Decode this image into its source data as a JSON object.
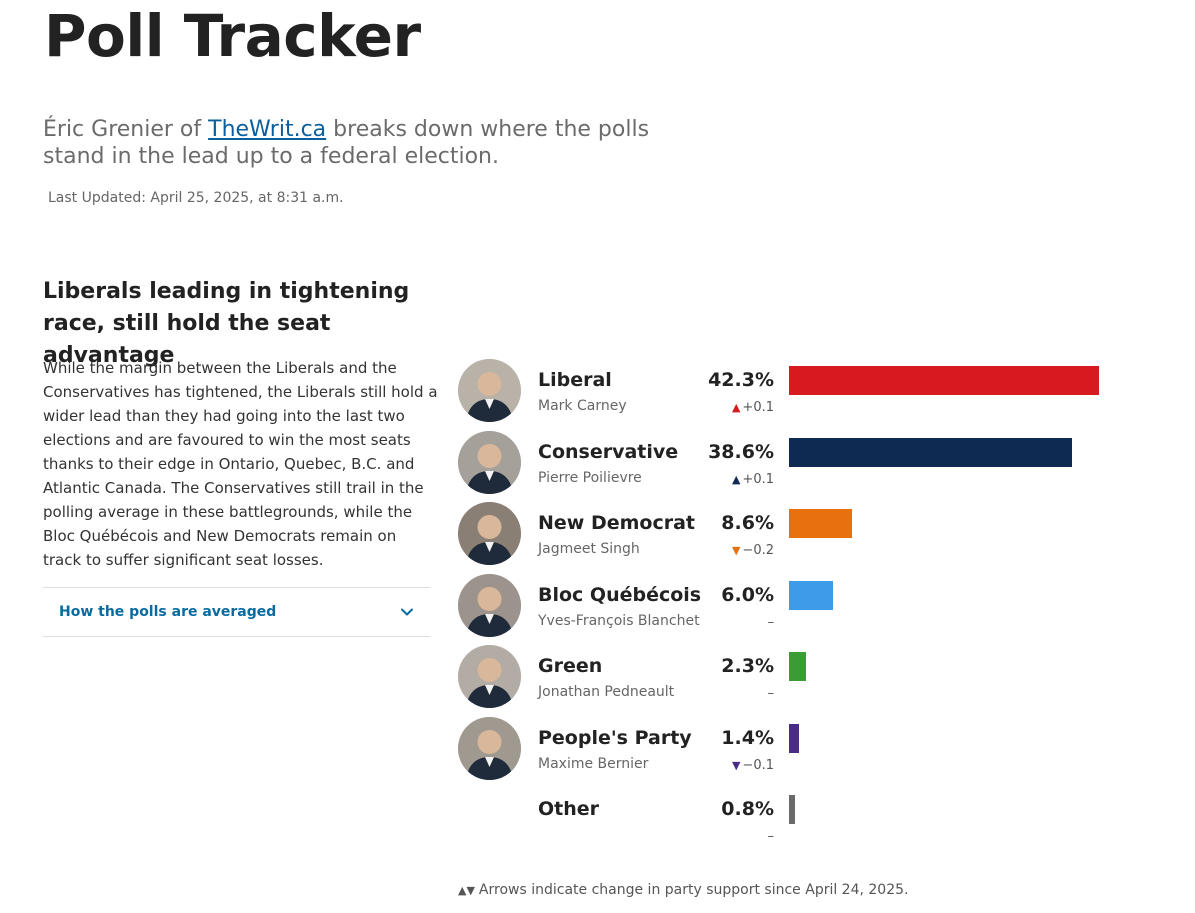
{
  "page": {
    "title": "Poll Tracker",
    "dek_before": "Éric Grenier of ",
    "dek_link": "TheWrit.ca",
    "dek_after": " breaks down where the polls stand in the lead up to a federal election.",
    "last_updated": "Last Updated: April 25, 2025, at 8:31 a.m."
  },
  "article": {
    "headline": "Liberals leading in tightening race, still hold the seat advantage",
    "body": "While the margin between the Liberals and the Conservatives has tightened, the Liberals still hold a wider lead than they had going into the last two elections and are favoured to win the most seats thanks to their edge in Ontario, Quebec, B.C. and Atlantic Canada. The Conservatives still trail in the polling average in these battlegrounds, while the Bloc Québécois and New Democrats remain on track to suffer significant seat losses.",
    "accordion_label": "How the polls are averaged"
  },
  "chart_data": {
    "type": "bar",
    "categories": [
      "Liberal",
      "Conservative",
      "New Democrat",
      "Bloc Québécois",
      "Green",
      "People's Party",
      "Other"
    ],
    "values": [
      42.3,
      38.6,
      8.6,
      6.0,
      2.3,
      1.4,
      0.8
    ],
    "max_value": 42.3,
    "rows": [
      {
        "party": "Liberal",
        "leader": "Mark Carney",
        "pct": "42.3%",
        "value": 42.3,
        "change": "+0.1",
        "direction": "up",
        "color": "#d71920",
        "arrow_color": "#d71920",
        "avatar": true
      },
      {
        "party": "Conservative",
        "leader": "Pierre Poilievre",
        "pct": "38.6%",
        "value": 38.6,
        "change": "+0.1",
        "direction": "up",
        "color": "#0e2a52",
        "arrow_color": "#0e2a52",
        "avatar": true
      },
      {
        "party": "New Democrat",
        "leader": "Jagmeet Singh",
        "pct": "8.6%",
        "value": 8.6,
        "change": "−0.2",
        "direction": "down",
        "color": "#e8700f",
        "arrow_color": "#e8700f",
        "avatar": true
      },
      {
        "party": "Bloc Québécois",
        "leader": "Yves-François Blanchet",
        "pct": "6.0%",
        "value": 6.0,
        "change": "–",
        "direction": "none",
        "color": "#3d9be9",
        "arrow_color": "#3d9be9",
        "avatar": true
      },
      {
        "party": "Green",
        "leader": "Jonathan Pedneault",
        "pct": "2.3%",
        "value": 2.3,
        "change": "–",
        "direction": "none",
        "color": "#3a9c35",
        "arrow_color": "#3a9c35",
        "avatar": true
      },
      {
        "party": "People's Party",
        "leader": "Maxime Bernier",
        "pct": "1.4%",
        "value": 1.4,
        "change": "−0.1",
        "direction": "down",
        "color": "#4a2c86",
        "arrow_color": "#4a2c86",
        "avatar": true
      },
      {
        "party": "Other",
        "leader": "",
        "pct": "0.8%",
        "value": 0.8,
        "change": "–",
        "direction": "none",
        "color": "#6b6b6b",
        "arrow_color": "#6b6b6b",
        "avatar": false
      }
    ]
  },
  "footnote": {
    "arrows": "▲▼",
    "text": "Arrows indicate change in party support since April 24, 2025."
  }
}
